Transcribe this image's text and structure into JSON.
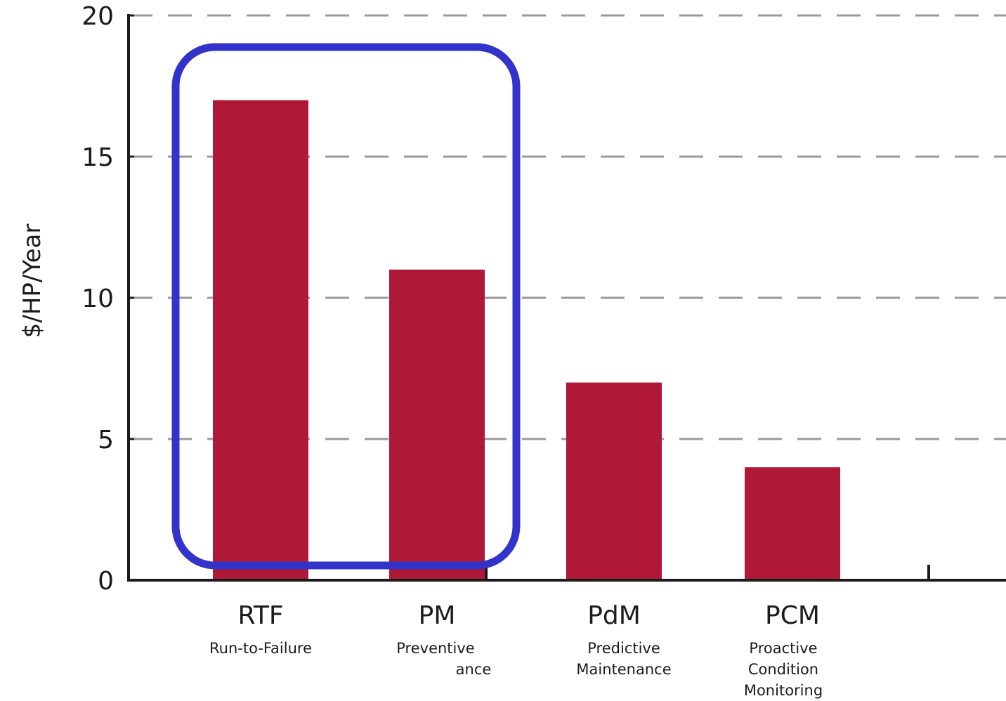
{
  "chart_data": {
    "type": "bar",
    "categories": [
      "RTF",
      "PM",
      "PdM",
      "PCM"
    ],
    "category_sublabels": [
      [
        "Run-to-Failure"
      ],
      [
        "Preventive",
        "ance"
      ],
      [
        "Predictive",
        "Maintenance"
      ],
      [
        "Proactive",
        "Condition",
        "Monitoring"
      ]
    ],
    "values": [
      17,
      11,
      7,
      4
    ],
    "title": "",
    "xlabel": "",
    "ylabel": "$/HP/Year",
    "ylim": [
      0,
      20
    ],
    "yticks": [
      0,
      5,
      10,
      15,
      20
    ],
    "grid": true,
    "grid_style": "dashed",
    "bar_color": "#B01838",
    "highlight": {
      "categories": [
        "RTF",
        "PM"
      ],
      "color": "#3333CC",
      "shape": "rounded-rectangle"
    }
  }
}
